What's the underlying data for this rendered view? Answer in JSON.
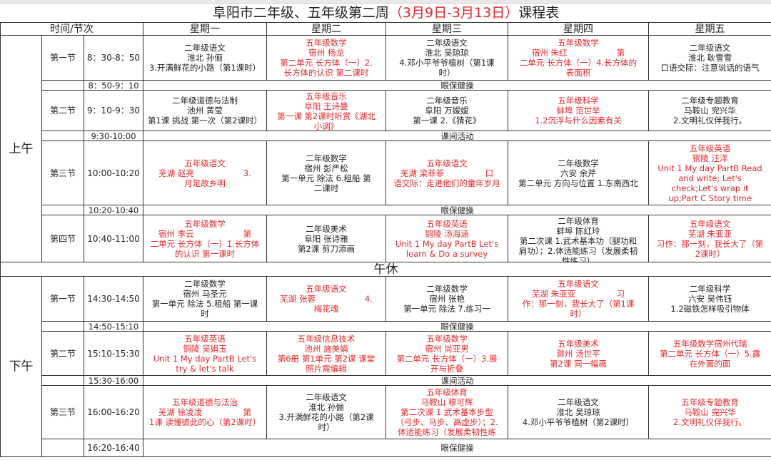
{
  "title": {
    "part1": "阜阳市二年级、五年级第二周",
    "part2": "（3月9日-3月13日）",
    "part3": "课程表",
    "accent_color": "#e8262a"
  },
  "header": {
    "time_period": "时间/节次",
    "days": [
      "星期一",
      "星期二",
      "星期三",
      "星期四",
      "星期五"
    ]
  },
  "morning": {
    "label": "上午",
    "rows": [
      {
        "type": "class",
        "period": "第一节",
        "time": "8：30-8：50",
        "height": 63,
        "cells": [
          {
            "color": "black",
            "lines": [
              "二年级语文",
              "淮北 孙俪",
              "3.开满鲜花的小路（第1课时）"
            ]
          },
          {
            "color": "red",
            "lines": [
              "五年级数学",
              "宿州 杨龙",
              "第二单元 长方体（一）2.",
              "长方体的认识 第二课时"
            ]
          },
          {
            "color": "black",
            "lines": [
              "二年级语文",
              "淮北 吴琼琼",
              "4.邓小平爷爷植树（第1课",
              "时）"
            ]
          },
          {
            "color": "red",
            "lines": [
              "五年级数学",
              "宿州 朱红　　　　　　第",
              "二单元 长方体（一）4.长方体的",
              "表面积"
            ]
          },
          {
            "color": "black",
            "lines": [
              "二年级语文",
              "淮北 耿雪雪",
              "口语交际：注意说话的语气"
            ]
          }
        ]
      },
      {
        "type": "break",
        "time": "8：50-9：10",
        "activity": "眼保健操"
      },
      {
        "type": "class",
        "period": "第二节",
        "time": "9：10-9：30",
        "height": 57,
        "cells": [
          {
            "color": "black",
            "lines": [
              "二年级道德与法制",
              "池州 黄莹",
              "第1课 挑战 第一次（第2课时）"
            ]
          },
          {
            "color": "red",
            "lines": [
              "五年级音乐",
              "阜阳 王诗曼",
              "第一课 第2课时听赏《湖北",
              "小调》"
            ]
          },
          {
            "color": "black",
            "lines": [
              "二年级音乐",
              "阜阳 万嫒嫒",
              "第一课 2.《猜花》"
            ]
          },
          {
            "color": "red",
            "lines": [
              "五年级科学",
              "蚌埠 范世举",
              "1.2沉浮与什么因素有关"
            ]
          },
          {
            "color": "black",
            "lines": [
              "二年级专题教育",
              "马鞍山 完兴华",
              "2.文明礼仪伴我行。"
            ]
          }
        ]
      },
      {
        "type": "break",
        "time": "9:30-10:00",
        "activity": "课间活动"
      },
      {
        "type": "class",
        "period": "第三节",
        "time": "10:00-10:20",
        "height": 90,
        "cells": [
          {
            "color": "red",
            "lines": [
              "五年级语文",
              "芜湖 赵亮　　　　　　3.",
              "月是故乡明"
            ]
          },
          {
            "color": "black",
            "lines": [
              "二年级数学",
              "宿州 彭严松",
              "第一单元 除法 6.租船 第",
              "二课时"
            ]
          },
          {
            "color": "red",
            "lines": [
              "五年级语文",
              "芜湖 梁菲菲　　　　　口",
              "语交际：走进他们的童年岁月"
            ]
          },
          {
            "color": "black",
            "lines": [
              "二年级数学",
              "六安 余芹",
              "第二单元 方向与位置 1.东南西北"
            ]
          },
          {
            "color": "red",
            "lines": [
              "五年级英语",
              "铜陵 汪洋",
              "Unit 1 My day PartB Read",
              "and write; Let's",
              "check;Let's wrap it",
              "up;Part C Story time"
            ]
          }
        ]
      },
      {
        "type": "break",
        "time": "10:20-10:40",
        "activity": "眼保健操"
      },
      {
        "type": "class",
        "period": "第四节",
        "time": "10:40-11:00",
        "height": 66,
        "cells": [
          {
            "color": "red",
            "lines": [
              "五年级数学",
              "宿州 李云　　　　　　第",
              "二单元 长方体（一）1.长方体",
              "的认识 第一课时"
            ]
          },
          {
            "color": "black",
            "lines": [
              "二年级美术",
              "阜阳 张诗雅",
              "第2课 剪刀添画"
            ]
          },
          {
            "color": "red",
            "lines": [
              "五年级英语",
              "铜陵 汤海涵",
              "Unit 1 My day PartB Let's",
              "learn & Do a survey"
            ]
          },
          {
            "color": "black",
            "lines": [
              "二年级体育",
              "蚌埠 陈红玲",
              "第二次课 1.武术基本功（腿功和",
              "肩功）；2.体适能练习（发展柔韧",
              "性练习）"
            ]
          },
          {
            "color": "red",
            "lines": [
              "五年级语文",
              "芜湖 朱亚亚",
              "习作：那一刻，我长大了（第",
              "2课时）"
            ]
          }
        ]
      }
    ]
  },
  "noon": "午休",
  "afternoon": {
    "label": "下午",
    "rows": [
      {
        "type": "class",
        "period": "第一节",
        "time": "14:30-14:50",
        "height": 63,
        "cells": [
          {
            "color": "black",
            "lines": [
              "二年级数学",
              "宿州 马圣元",
              "第一单元 除法 5.租船 第一课",
              "时"
            ]
          },
          {
            "color": "red",
            "lines": [
              "五年级语文",
              "芜湖 张蓉　　　　　　4.",
              "梅花魂"
            ]
          },
          {
            "color": "black",
            "lines": [
              "二年级数学",
              "宿州 张艳",
              "第一单元 除法 7.练习一"
            ]
          },
          {
            "color": "red",
            "lines": [
              "五年级语文",
              "芜湖 朱亚亚　　　　　习",
              "作：那一刻，我长大了（第1课",
              "时）"
            ]
          },
          {
            "color": "black",
            "lines": [
              "二年级科学",
              "六安 吴伟钰",
              "1.2磁铁怎样吸引物体"
            ]
          }
        ]
      },
      {
        "type": "break",
        "time": "14:50-15:10",
        "activity": "眼保健操"
      },
      {
        "type": "class",
        "period": "第二节",
        "time": "15:10-15:30",
        "height": 62,
        "cells": [
          {
            "color": "red",
            "lines": [
              "五年级英语",
              "铜陵 吴娟玉",
              "Unit 1 My day PartB Let's",
              "try & let's talk"
            ]
          },
          {
            "color": "red",
            "lines": [
              "五年级信息技术",
              "池州 施美娟",
              "第6册 第1单元 第2课 课堂",
              "照片需编辑"
            ]
          },
          {
            "color": "red",
            "lines": [
              "五年级数学",
              "宿州 尚亚男",
              "第二单元 长方体（一）3.展",
              "开与折叠"
            ]
          },
          {
            "color": "red",
            "lines": [
              "五年级美术",
              "滁州 汤世平",
              "第2课 同一幅画"
            ]
          },
          {
            "color": "red",
            "lines": [
              "五年级数学宿州代瑞",
              "第二单元 长方体（一）5.露",
              "在外面的面"
            ]
          }
        ]
      },
      {
        "type": "break",
        "time": "15:30-16:00",
        "activity": "课间活动"
      },
      {
        "type": "class",
        "period": "第三节",
        "time": "16:00-16:20",
        "height": 75,
        "cells": [
          {
            "color": "red",
            "lines": [
              "五年级道德与法治",
              "芜湖 徐凌凌　　　　　第",
              "1课 读懂彼此的心（第2课时）"
            ]
          },
          {
            "color": "black",
            "lines": [
              "二年级语文",
              "淮北 孙俪",
              "3.开满鲜花的小路（第2课",
              "时）"
            ]
          },
          {
            "color": "red",
            "lines": [
              "五年级体育",
              "马鞍山 穆可辉",
              "第二次课 1.武术基本步型",
              "（弓步、马步、高虚步）；2.",
              "体适能练习（发展柔韧性练"
            ]
          },
          {
            "color": "black",
            "lines": [
              "二年级语文",
              "淮北 吴琼琼",
              "4.邓小平爷爷植树（第2课时）"
            ]
          },
          {
            "color": "red",
            "lines": [
              "五年级专题教育",
              "马鞍山 完兴华",
              "2.文明礼仪伴我行。"
            ]
          }
        ]
      },
      {
        "type": "lastbreak",
        "time": "16:20-16:40",
        "activity": "眼保健操"
      }
    ]
  }
}
